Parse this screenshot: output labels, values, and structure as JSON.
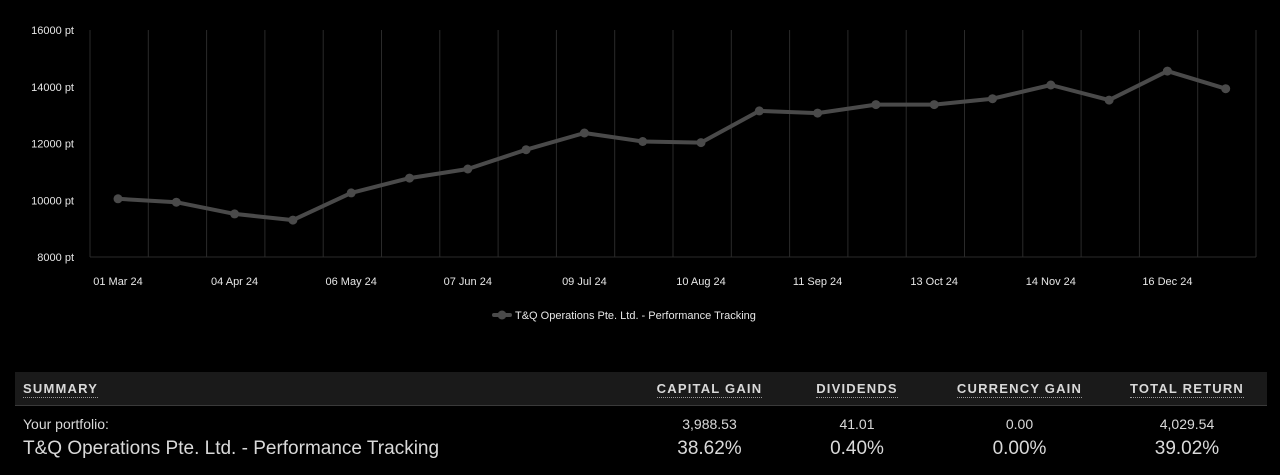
{
  "chart_data": {
    "type": "line",
    "x": [
      "01 Mar 24",
      "17 Mar 24",
      "04 Apr 24",
      "20 Apr 24",
      "06 May 24",
      "22 May 24",
      "07 Jun 24",
      "23 Jun 24",
      "09 Jul 24",
      "25 Jul 24",
      "10 Aug 24",
      "26 Aug 24",
      "11 Sep 24",
      "27 Sep 24",
      "13 Oct 24",
      "29 Oct 24",
      "14 Nov 24",
      "30 Nov 24",
      "16 Dec 24",
      "01 Jan 25"
    ],
    "series": [
      {
        "name": "T&Q Operations Pte. Ltd. - Performance Tracking",
        "values": [
          10050,
          9930,
          9520,
          9300,
          10260,
          10780,
          11100,
          11780,
          12370,
          12070,
          12030,
          13150,
          13070,
          13370,
          13370,
          13580,
          14060,
          13530,
          14550,
          13930
        ],
        "color": "#4a4a4a"
      }
    ],
    "xticks": [
      "01 Mar 24",
      "04 Apr 24",
      "06 May 24",
      "07 Jun 24",
      "09 Jul 24",
      "10 Aug 24",
      "11 Sep 24",
      "13 Oct 24",
      "14 Nov 24",
      "16 Dec 24"
    ],
    "yticks": [
      "8000 pt",
      "10000 pt",
      "12000 pt",
      "14000 pt",
      "16000 pt"
    ],
    "ylim": [
      8000,
      16000
    ],
    "grid": "vertical",
    "legend": "bottom-center"
  },
  "summary": {
    "header": {
      "label": "SUMMARY",
      "capital_gain": "CAPITAL GAIN",
      "dividends": "DIVIDENDS",
      "currency_gain": "CURRENCY GAIN",
      "total_return": "TOTAL RETURN"
    },
    "portfolio_row": {
      "label": "Your portfolio:",
      "capital_gain": "3,988.53",
      "dividends": "41.01",
      "currency_gain": "0.00",
      "total_return": "4,029.54"
    },
    "percent_row": {
      "label": "T&Q Operations Pte. Ltd. - Performance Tracking",
      "capital_gain": "38.62%",
      "dividends": "0.40%",
      "currency_gain": "0.00%",
      "total_return": "39.02%"
    }
  },
  "colors": {
    "background": "#000000",
    "line": "#4a4a4a",
    "grid": "#2a2a2a",
    "header_bg": "#1a1a1a"
  }
}
